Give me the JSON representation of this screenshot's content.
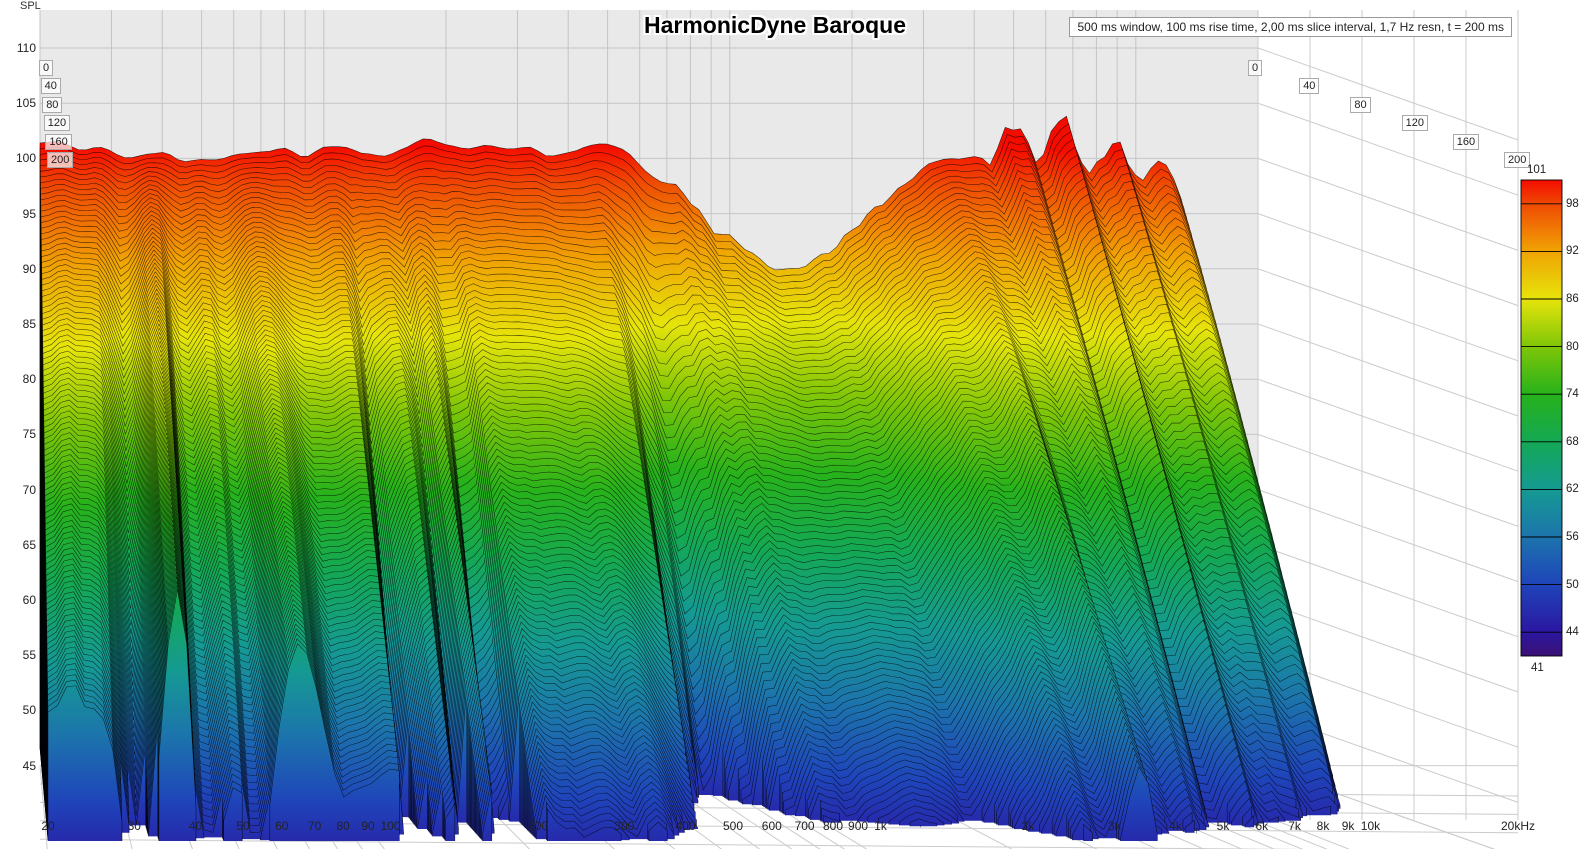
{
  "header": {
    "spl_axis_label": "SPL",
    "title": "HarmonicDyne Baroque",
    "info_box": "500 ms window, 100 ms rise time, 2,00 ms slice interval, 1,7 Hz resn, t = 200 ms"
  },
  "colors": {
    "back_wall": "#e9e9e9",
    "wall_grid": "#c5c5c5",
    "floor_grid": "#cbcbcb",
    "slice_line": "rgba(0,0,0,0.78)",
    "title_text": "#000000"
  },
  "chart_data": {
    "type": "waterfall",
    "title": "HarmonicDyne Baroque",
    "subtitle": "500 ms window, 100 ms rise time, 2,00 ms slice interval, 1,7 Hz resn, t = 200 ms",
    "ylabel": "SPL",
    "x_axis": {
      "scale": "log",
      "min_hz": 20,
      "max_hz": 20000,
      "ticks": [
        {
          "f": 20,
          "label": "20"
        },
        {
          "f": 30,
          "label": "30"
        },
        {
          "f": 40,
          "label": "40"
        },
        {
          "f": 50,
          "label": "50"
        },
        {
          "f": 60,
          "label": "60"
        },
        {
          "f": 70,
          "label": "70"
        },
        {
          "f": 80,
          "label": "80"
        },
        {
          "f": 90,
          "label": "90"
        },
        {
          "f": 100,
          "label": "100"
        },
        {
          "f": 200,
          "label": "200"
        },
        {
          "f": 300,
          "label": "300"
        },
        {
          "f": 400,
          "label": "400"
        },
        {
          "f": 500,
          "label": "500"
        },
        {
          "f": 600,
          "label": "600"
        },
        {
          "f": 700,
          "label": "700"
        },
        {
          "f": 800,
          "label": "800"
        },
        {
          "f": 900,
          "label": "900"
        },
        {
          "f": 1000,
          "label": "1k"
        },
        {
          "f": 2000,
          "label": "2k"
        },
        {
          "f": 3000,
          "label": "3k"
        },
        {
          "f": 4000,
          "label": "4k"
        },
        {
          "f": 5000,
          "label": "5k"
        },
        {
          "f": 6000,
          "label": "6k"
        },
        {
          "f": 7000,
          "label": "7k"
        },
        {
          "f": 8000,
          "label": "8k"
        },
        {
          "f": 9000,
          "label": "9k"
        },
        {
          "f": 10000,
          "label": "10k"
        },
        {
          "f": 20000,
          "label": "20kHz"
        }
      ]
    },
    "y_axis": {
      "label": "SPL",
      "min": 45,
      "max": 110,
      "step": 5
    },
    "time_axis": {
      "unit": "ms",
      "ticks": [
        0,
        40,
        80,
        120,
        160,
        200
      ],
      "total_ms": 200,
      "slice_interval_ms": 2
    },
    "colorbar": {
      "levels": [
        101,
        98,
        92,
        86,
        80,
        74,
        68,
        62,
        56,
        50,
        44,
        41
      ],
      "colors": [
        "#f50c00",
        "#ef4903",
        "#f0a304",
        "#e6e40a",
        "#7fc608",
        "#27b21b",
        "#14a854",
        "#159a92",
        "#1c74ac",
        "#1f44ba",
        "#2b17a1",
        "#3a1173"
      ]
    },
    "floor_db": 46.5,
    "frequency_response_t0_db": [
      [
        20,
        101.0
      ],
      [
        24,
        100.8
      ],
      [
        29,
        100.5
      ],
      [
        34,
        100.1
      ],
      [
        40,
        100.4
      ],
      [
        46,
        100.0
      ],
      [
        52,
        99.9
      ],
      [
        60,
        100.3
      ],
      [
        72,
        100.5
      ],
      [
        90,
        100.3
      ],
      [
        110,
        100.5
      ],
      [
        140,
        100.7
      ],
      [
        175,
        101.15
      ],
      [
        220,
        101.3
      ],
      [
        280,
        101.15
      ],
      [
        360,
        101.05
      ],
      [
        450,
        100.85
      ],
      [
        540,
        100.45
      ],
      [
        620,
        99.6
      ],
      [
        720,
        97.6
      ],
      [
        830,
        95.2
      ],
      [
        950,
        93.0
      ],
      [
        1100,
        91.4
      ],
      [
        1300,
        90.3
      ],
      [
        1500,
        90.1
      ],
      [
        1750,
        91.4
      ],
      [
        2000,
        93.6
      ],
      [
        2300,
        95.9
      ],
      [
        2700,
        97.9
      ],
      [
        3100,
        99.3
      ],
      [
        3600,
        100.1
      ],
      [
        4100,
        100.0
      ],
      [
        4400,
        99.0
      ],
      [
        4800,
        102.6
      ],
      [
        5200,
        102.9
      ],
      [
        5750,
        99.2
      ],
      [
        6300,
        102.3
      ],
      [
        6700,
        103.6
      ],
      [
        7100,
        101.2
      ],
      [
        7600,
        98.6
      ],
      [
        8200,
        99.9
      ],
      [
        9000,
        101.3
      ],
      [
        9800,
        98.8
      ],
      [
        10500,
        98.3
      ],
      [
        11200,
        100.2
      ],
      [
        11900,
        99.6
      ],
      [
        12600,
        97.5
      ],
      [
        13500,
        92.5
      ],
      [
        14500,
        86.0
      ],
      [
        15800,
        77.0
      ],
      [
        17000,
        67.5
      ],
      [
        18200,
        58.0
      ],
      [
        19200,
        50.5
      ],
      [
        20000,
        46.0
      ]
    ],
    "decay_rate_db_per_ms": [
      [
        20,
        0.215
      ],
      [
        27,
        0.15
      ],
      [
        32,
        0.225
      ],
      [
        37,
        0.155
      ],
      [
        43,
        0.23
      ],
      [
        48,
        0.165
      ],
      [
        55,
        0.235
      ],
      [
        65,
        0.18
      ],
      [
        80,
        0.24
      ],
      [
        100,
        0.235
      ],
      [
        130,
        0.25
      ],
      [
        180,
        0.245
      ],
      [
        250,
        0.25
      ],
      [
        350,
        0.26
      ],
      [
        450,
        0.3
      ],
      [
        520,
        0.42
      ],
      [
        600,
        0.52
      ],
      [
        680,
        0.42
      ],
      [
        780,
        0.33
      ],
      [
        900,
        0.29
      ],
      [
        1100,
        0.27
      ],
      [
        1400,
        0.25
      ],
      [
        1800,
        0.26
      ],
      [
        2200,
        0.24
      ],
      [
        2600,
        0.215
      ],
      [
        3000,
        0.245
      ],
      [
        3400,
        0.21
      ],
      [
        3900,
        0.26
      ],
      [
        4500,
        0.27
      ],
      [
        5200,
        0.29
      ],
      [
        6000,
        0.3
      ],
      [
        7000,
        0.3
      ],
      [
        8000,
        0.295
      ],
      [
        9000,
        0.3
      ],
      [
        10000,
        0.3
      ],
      [
        11500,
        0.31
      ],
      [
        13000,
        0.33
      ],
      [
        15000,
        0.36
      ],
      [
        17000,
        0.4
      ],
      [
        20000,
        0.42
      ]
    ]
  }
}
